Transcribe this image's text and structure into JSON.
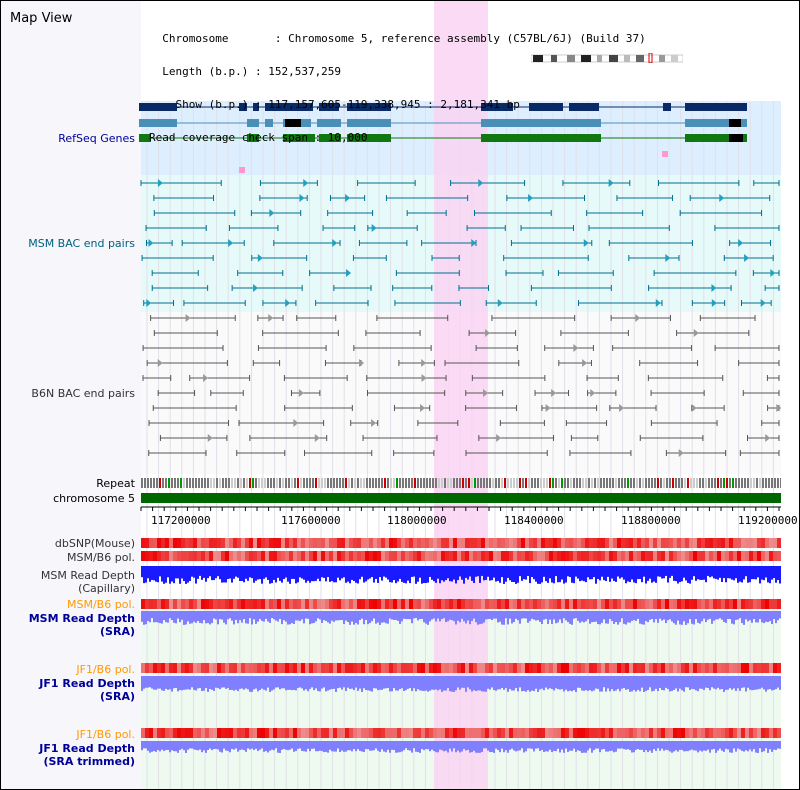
{
  "title": "Map View",
  "info": {
    "lines": [
      "  Chromosome       : Chromosome 5, reference assembly (C57BL/6J) (Build 37)",
      "  Length (b.p.) : 152,537,259",
      "    Show (b.p.) : 117,157,605-119,338,945 : 2,181,341 bp",
      "Read coverage check span : 10,000"
    ]
  },
  "colors": {
    "refseq_bg": "#ddeeff",
    "msm_bg": "#e6fafa",
    "highlight": "#f9d4f2",
    "chromosome": "#006600",
    "msm_read_depth": "#1a1aff",
    "sra_depth": "#8080ff",
    "pol_red": "#ee3333",
    "label_blue": "#000099",
    "label_teal": "#006080",
    "label_orange": "#ff9900",
    "label_gray": "#333333"
  },
  "tracks": {
    "refseq": "RefSeq Genes",
    "msm_bac": "MSM BAC end pairs",
    "b6n_bac": "B6N BAC end pairs",
    "repeat": "Repeat",
    "chromosome": "chromosome 5",
    "dbsnp": "dbSNP(Mouse)",
    "msm_b6_pol_1": "MSM/B6 pol.",
    "msm_read_depth_cap_1": "MSM Read Depth",
    "msm_read_depth_cap_2": "(Capillary)",
    "msm_b6_pol_2": "MSM/B6 pol.",
    "msm_read_depth_sra_1": "MSM Read Depth",
    "msm_read_depth_sra_2": "(SRA)",
    "jf1_b6_pol_1": "JF1/B6 pol.",
    "jf1_read_depth_sra_1": "JF1 Read Depth",
    "jf1_read_depth_sra_2": "(SRA)",
    "jf1_b6_pol_2": "JF1/B6 pol.",
    "jf1_read_depth_trim_1": "JF1 Read Depth",
    "jf1_read_depth_trim_2": "(SRA trimmed)"
  },
  "axis": {
    "ticks": [
      "117200000",
      "117600000",
      "118000000",
      "118400000",
      "118800000",
      "119200000"
    ]
  }
}
